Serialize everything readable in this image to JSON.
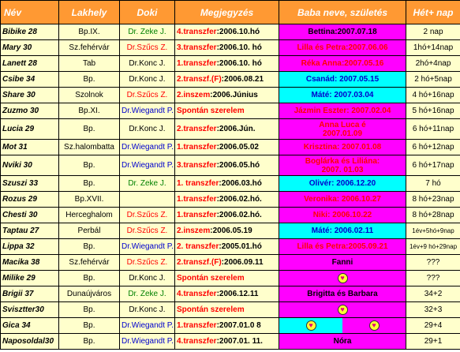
{
  "headers": [
    "Név",
    "Lakhely",
    "Doki",
    "Megjegyzés",
    "Baba neve, születés",
    "Hét+ nap"
  ],
  "colors": {
    "header": "#ff9933",
    "cell": "#ffffcc",
    "magenta": "#ff00ff",
    "cyan": "#00ffff",
    "red": "#ff0000",
    "blue": "#0000cc",
    "green": "#008000"
  },
  "rows": [
    {
      "name": "Bibike 28",
      "place": "Bp.IX.",
      "doc": "Dr. Zeke J.",
      "doc_color": "green",
      "note_prefix": "4.transzfer",
      "note_suffix": ":2006.10.hó",
      "note_color": "red",
      "baby": "Bettina:2007.07.18",
      "baby_color": "black",
      "baby_bg": "magenta",
      "weeks": "2 nap"
    },
    {
      "name": "Mary 30",
      "place": "Sz.fehérvár",
      "doc": "Dr.Szűcs Z.",
      "doc_color": "red",
      "note_prefix": "3.transzfer",
      "note_suffix": ":2006.10. hó",
      "note_color": "red",
      "baby": "Lilla és Petra:2007.06.06",
      "baby_color": "red",
      "baby_bg": "magenta",
      "weeks": "1hó+14nap"
    },
    {
      "name": "Lanett 28",
      "place": "Tab",
      "doc": "Dr.Konc J.",
      "doc_color": "black",
      "note_prefix": "1.transzfer",
      "note_suffix": ":2006.10. hó",
      "note_color": "red",
      "baby": "Réka Anna:2007.05.16",
      "baby_color": "red",
      "baby_bg": "magenta",
      "weeks": "2hó+4nap"
    },
    {
      "name": "Csibe 34",
      "place": "Bp.",
      "doc": "Dr.Konc J.",
      "doc_color": "black",
      "note_prefix": "2.transzf.(F)",
      "note_suffix": ":2006.08.21",
      "note_color": "red",
      "baby": "Csanád: 2007.05.15",
      "baby_color": "blue",
      "baby_bg": "cyan",
      "weeks": "2 hó+5nap"
    },
    {
      "name": "Share 30",
      "place": "Szolnok",
      "doc": "Dr.Szűcs Z.",
      "doc_color": "red",
      "note_prefix": "2.inszem",
      "note_suffix": ":2006.Június",
      "note_color": "red",
      "baby": "Máté: 2007.03.04",
      "baby_color": "blue",
      "baby_bg": "cyan",
      "weeks": "4 hó+16nap"
    },
    {
      "name": "Zuzmo 30",
      "place": "Bp.XI.",
      "doc": "Dr.Wiegandt P.",
      "doc_color": "blue",
      "note_prefix": "Spontán szerelem",
      "note_suffix": "",
      "note_color": "red",
      "baby": "Jázmin Eszter: 2007.02.04",
      "baby_color": "red",
      "baby_bg": "magenta",
      "weeks": "5 hó+16nap"
    },
    {
      "name": "Lucia 29",
      "place": "Bp.",
      "doc": "Dr.Konc J.",
      "doc_color": "black",
      "note_prefix": "2.transzfer",
      "note_suffix": ":2006.Jún.",
      "note_color": "red",
      "baby": "Anna Luca é",
      "baby2": "2007.01.09",
      "baby_color": "red",
      "baby_bg": "magenta",
      "weeks": "6 hó+11nap"
    },
    {
      "name": "Mot 31",
      "place": "Sz.halombatta",
      "doc": "Dr.Wiegandt P.",
      "doc_color": "blue",
      "note_prefix": "1.transzfer",
      "note_suffix": ":2006.05.02",
      "note_color": "red",
      "baby": "Krisztina: 2007.01.08",
      "baby_color": "red",
      "baby_bg": "magenta",
      "weeks": "6 hó+12nap"
    },
    {
      "name": "Nviki 30",
      "place": "Bp.",
      "doc": "Dr.Wiegandt P.",
      "doc_color": "blue",
      "note_prefix": "3.transzfer",
      "note_suffix": ":2006.05.hó",
      "note_color": "red",
      "baby": "Boglárka és Liliána:",
      "baby2": "2007. 01.03",
      "baby_color": "red",
      "baby_bg": "magenta",
      "weeks": "6 hó+17nap"
    },
    {
      "name": "Szuszi 33",
      "place": "Bp.",
      "doc": "Dr. Zeke J.",
      "doc_color": "green",
      "note_prefix": "1. transzfer",
      "note_suffix": ":2006.03.hó",
      "note_color": "red",
      "baby": "Olivér: 2006.12.20",
      "baby_color": "blue",
      "baby_bg": "cyan",
      "weeks": "7 hó"
    },
    {
      "name": "Rozus 29",
      "place": "Bp.XVII.",
      "doc": "",
      "doc_color": "black",
      "note_prefix": "1.transzfer",
      "note_suffix": ":2006.02.hó.",
      "note_color": "red",
      "baby": "Veronika: 2006.10.27",
      "baby_color": "red",
      "baby_bg": "magenta",
      "weeks": "8 hó+23nap"
    },
    {
      "name": "Chesti 30",
      "place": "Herceghalom",
      "doc": "Dr.Szűcs Z.",
      "doc_color": "red",
      "note_prefix": "1.transzfer",
      "note_suffix": ":2006.02.hó.",
      "note_color": "red",
      "baby": "Niki: 2006.10.22",
      "baby_color": "red",
      "baby_bg": "magenta",
      "weeks": "8 hó+28nap"
    },
    {
      "name": "Taptau 27",
      "place": "Perbál",
      "doc": "Dr.Szűcs Z.",
      "doc_color": "red",
      "note_prefix": "2.inszem",
      "note_suffix": ":2006.05.19",
      "note_color": "red",
      "baby": "Máté: 2006.02.11",
      "baby_color": "blue",
      "baby_bg": "cyan",
      "weeks": "1év+5hó+9nap"
    },
    {
      "name": "Lippa 32",
      "place": "Bp.",
      "doc": "Dr.Wiegandt P.",
      "doc_color": "blue",
      "note_prefix": "2. transzfer",
      "note_suffix": ":2005.01.hó",
      "note_color": "red",
      "baby": "Lilla és Petra:2005.09.21",
      "baby_color": "red",
      "baby_bg": "magenta",
      "weeks": "1év+9 hó+29nap"
    },
    {
      "name": "Macika 38",
      "place": "Sz.fehérvár",
      "doc": "Dr.Szűcs Z.",
      "doc_color": "red",
      "note_prefix": "2.transzf.(F)",
      "note_suffix": ":2006.09.11",
      "note_color": "red",
      "baby": "Fanni",
      "baby_color": "black",
      "baby_bg": "magenta",
      "weeks": "???"
    },
    {
      "name": "Milike 29",
      "place": "Bp.",
      "doc": "Dr.Konc J.",
      "doc_color": "black",
      "note_prefix": "Spontán szerelem",
      "note_suffix": "",
      "note_color": "red",
      "baby": "",
      "heart": "single",
      "baby_color": "black",
      "baby_bg": "magenta",
      "weeks": "???"
    },
    {
      "name": "Brigii 37",
      "place": "Dunaújváros",
      "doc": "Dr. Zeke J.",
      "doc_color": "green",
      "note_prefix": "4.transzfer",
      "note_suffix": ":2006.12.11",
      "note_color": "red",
      "baby": "Brigitta és Barbara",
      "baby_color": "black",
      "baby_bg": "magenta",
      "weeks": "34+2"
    },
    {
      "name": "Svisztter30",
      "place": "Bp.",
      "doc": "Dr.Konc J.",
      "doc_color": "black",
      "note_prefix": "Spontán szerelem",
      "note_suffix": "",
      "note_color": "red",
      "baby": "",
      "heart": "single",
      "baby_color": "black",
      "baby_bg": "magenta",
      "weeks": "32+3"
    },
    {
      "name": "Gica 34",
      "place": "Bp.",
      "doc": "Dr.Wiegandt P.",
      "doc_color": "blue",
      "note_prefix": "1.transzfer",
      "note_suffix": ":2007.01.0 8",
      "note_color": "red",
      "baby": "",
      "heart": "split",
      "baby_color": "black",
      "baby_bg": "cyan",
      "weeks": "29+4"
    },
    {
      "name": "Naposoldal30",
      "place": "Bp.",
      "doc": "Dr.Wiegandt P.",
      "doc_color": "blue",
      "note_prefix": "4.transzfer",
      "note_suffix": ":2007.01. 11.",
      "note_color": "red",
      "baby": "Nóra",
      "baby_color": "black",
      "baby_bg": "magenta",
      "weeks": "29+1"
    }
  ]
}
